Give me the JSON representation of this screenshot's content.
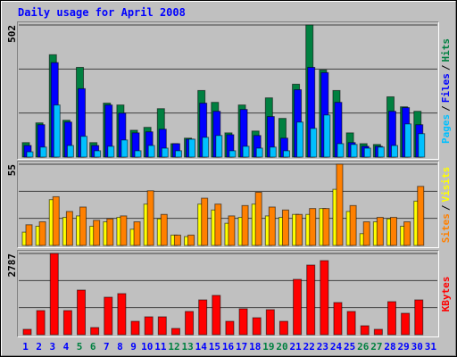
{
  "chart_data": [
    {
      "type": "bar",
      "title": "Daily usage for April 2008",
      "ylim": [
        0,
        502
      ],
      "yticks": [
        502
      ],
      "legend_separator": "/",
      "series": [
        {
          "name": "Hits",
          "color": "#008040",
          "values": [
            55,
            130,
            389,
            140,
            341,
            55,
            205,
            198,
            102,
            113,
            184,
            51,
            72,
            253,
            208,
            92,
            198,
            99,
            225,
            147,
            277,
            502,
            331,
            253,
            92,
            51,
            48,
            229,
            191,
            174,
            0
          ]
        },
        {
          "name": "Files",
          "color": "#0000ff",
          "values": [
            44,
            123,
            359,
            133,
            260,
            44,
            198,
            167,
            92,
            96,
            106,
            51,
            68,
            205,
            174,
            85,
            181,
            82,
            154,
            72,
            256,
            341,
            321,
            208,
            55,
            41,
            41,
            174,
            188,
            123,
            0
          ]
        },
        {
          "name": "Pages",
          "color": "#00c0ff",
          "values": [
            20,
            38,
            198,
            44,
            79,
            24,
            41,
            65,
            24,
            44,
            34,
            24,
            68,
            75,
            82,
            24,
            41,
            34,
            38,
            24,
            133,
            109,
            160,
            51,
            48,
            34,
            38,
            44,
            126,
            89,
            0
          ]
        }
      ]
    },
    {
      "type": "bar",
      "ylim": [
        0,
        55
      ],
      "yticks": [
        55
      ],
      "legend_separator": "/",
      "series": [
        {
          "name": "Visits",
          "color": "#ffff00",
          "values": [
            9,
            13,
            31,
            19,
            20,
            13,
            16,
            19,
            11,
            28,
            18,
            7,
            6,
            28,
            24,
            15,
            19,
            28,
            20,
            19,
            21,
            21,
            25,
            38,
            23,
            8,
            16,
            18,
            13,
            30,
            0
          ]
        },
        {
          "name": "Sites",
          "color": "#ff8000",
          "values": [
            14,
            16,
            33,
            23,
            26,
            17,
            18,
            20,
            16,
            37,
            21,
            7,
            7,
            32,
            28,
            20,
            27,
            36,
            26,
            24,
            21,
            25,
            25,
            55,
            27,
            16,
            19,
            19,
            16,
            40,
            0
          ]
        }
      ]
    },
    {
      "type": "bar",
      "ylim": [
        0,
        2787
      ],
      "yticks": [
        2787
      ],
      "categories": [
        "1",
        "2",
        "3",
        "4",
        "5",
        "6",
        "7",
        "8",
        "9",
        "10",
        "11",
        "12",
        "13",
        "14",
        "15",
        "16",
        "17",
        "18",
        "19",
        "20",
        "21",
        "22",
        "23",
        "24",
        "25",
        "26",
        "27",
        "28",
        "29",
        "30",
        "31"
      ],
      "category_colors": [
        "#0000ff",
        "#0000ff",
        "#0000ff",
        "#0000ff",
        "#008040",
        "#008040",
        "#0000ff",
        "#0000ff",
        "#0000ff",
        "#0000ff",
        "#0000ff",
        "#008040",
        "#008040",
        "#0000ff",
        "#0000ff",
        "#0000ff",
        "#0000ff",
        "#0000ff",
        "#008040",
        "#008040",
        "#0000ff",
        "#0000ff",
        "#0000ff",
        "#0000ff",
        "#0000ff",
        "#008040",
        "#008040",
        "#0000ff",
        "#0000ff",
        "#0000ff",
        "#0000ff"
      ],
      "series": [
        {
          "name": "KBytes",
          "color": "#ff0000",
          "values": [
            184,
            827,
            2787,
            827,
            1531,
            245,
            1286,
            1409,
            459,
            613,
            613,
            214,
            796,
            1194,
            1348,
            459,
            888,
            582,
            858,
            459,
            1899,
            2389,
            2542,
            1103,
            796,
            306,
            184,
            1133,
            735,
            1194,
            0
          ]
        }
      ]
    }
  ]
}
